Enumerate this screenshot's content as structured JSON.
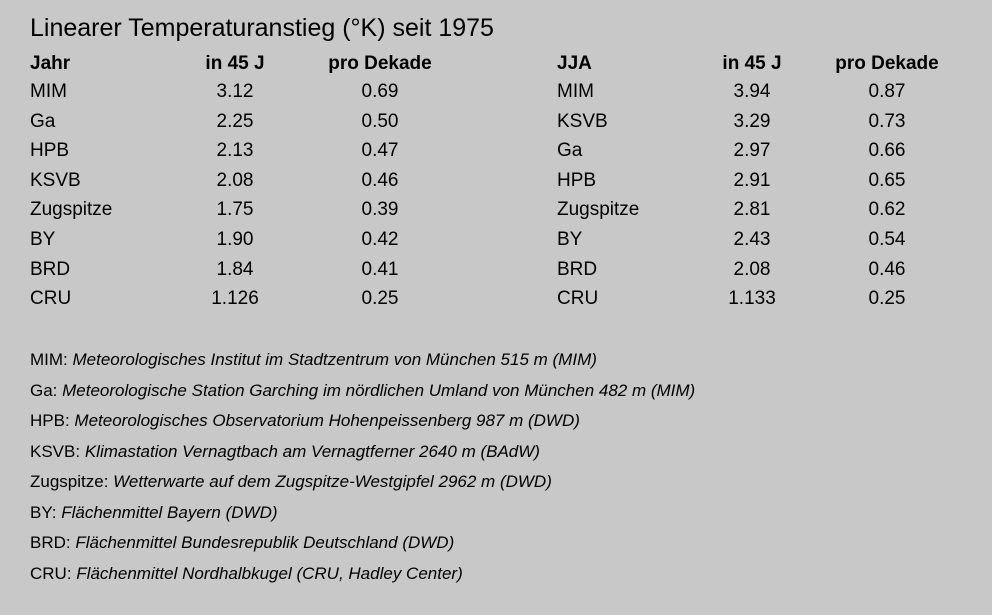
{
  "title": "Linearer Temperaturanstieg (°K) seit 1975",
  "tables": {
    "left": {
      "headers": [
        "Jahr",
        "in 45 J",
        "pro Dekade"
      ],
      "rows": [
        [
          "MIM",
          "3.12",
          "0.69"
        ],
        [
          "Ga",
          "2.25",
          "0.50"
        ],
        [
          "HPB",
          "2.13",
          "0.47"
        ],
        [
          "KSVB",
          "2.08",
          "0.46"
        ],
        [
          "Zugspitze",
          "1.75",
          "0.39"
        ],
        [
          "BY",
          "1.90",
          "0.42"
        ],
        [
          "BRD",
          "1.84",
          "0.41"
        ],
        [
          "CRU",
          "1.126",
          "0.25"
        ]
      ]
    },
    "right": {
      "headers": [
        "JJA",
        "in 45 J",
        "pro Dekade"
      ],
      "rows": [
        [
          "MIM",
          "3.94",
          "0.87"
        ],
        [
          "KSVB",
          "3.29",
          "0.73"
        ],
        [
          "Ga",
          "2.97",
          "0.66"
        ],
        [
          "HPB",
          "2.91",
          "0.65"
        ],
        [
          "Zugspitze",
          "2.81",
          "0.62"
        ],
        [
          "BY",
          "2.43",
          "0.54"
        ],
        [
          "BRD",
          "2.08",
          "0.46"
        ],
        [
          "CRU",
          "1.133",
          "0.25"
        ]
      ]
    }
  },
  "legend": [
    {
      "key": "MIM:",
      "desc": "Meteorologisches Institut im Stadtzentrum von München 515 m (MIM)"
    },
    {
      "key": "Ga:",
      "desc": "Meteorologische Station Garching im nördlichen Umland von München 482 m (MIM)"
    },
    {
      "key": "HPB:",
      "desc": "Meteorologisches Observatorium Hohenpeissenberg 987 m (DWD)"
    },
    {
      "key": "KSVB:",
      "desc": "Klimastation Vernagtbach am Vernagtferner 2640 m (BAdW)"
    },
    {
      "key": "Zugspitze:",
      "desc": "Wetterwarte auf dem Zugspitze-Westgipfel 2962 m (DWD)"
    },
    {
      "key": "BY:",
      "desc": "Flächenmittel Bayern (DWD)"
    },
    {
      "key": "BRD:",
      "desc": "Flächenmittel Bundesrepublik Deutschland (DWD)"
    },
    {
      "key": "CRU:",
      "desc": "Flächenmittel Nordhalbkugel (CRU, Hadley Center)"
    }
  ]
}
